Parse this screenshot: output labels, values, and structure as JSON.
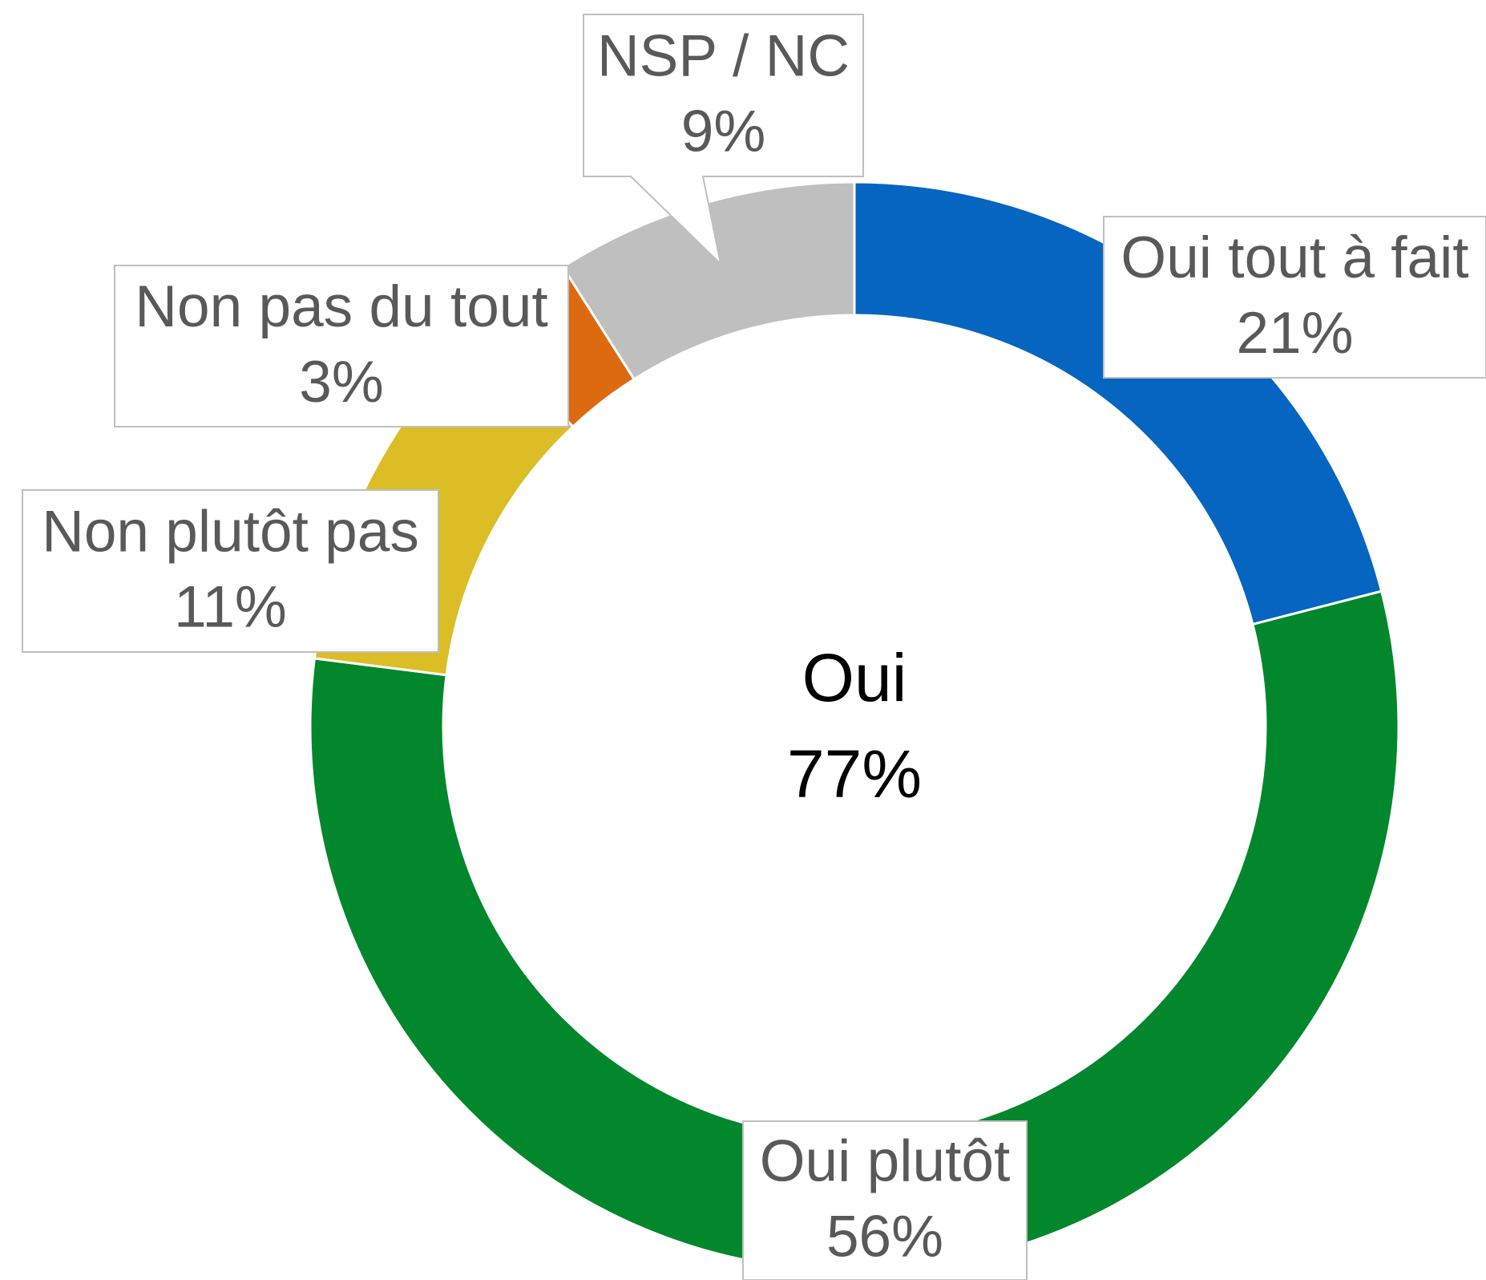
{
  "chart_data": {
    "type": "donut",
    "categories": [
      "Oui tout à fait",
      "Oui plutôt",
      "Non plutôt pas",
      "Non pas du tout",
      "NSP / NC"
    ],
    "values": [
      21,
      56,
      11,
      3,
      9
    ],
    "value_labels": [
      "21%",
      "56%",
      "11%",
      "3%",
      "9%"
    ],
    "colors": [
      "#0565c0",
      "#02872c",
      "#dbbd25",
      "#de6a10",
      "#bfbfbf"
    ],
    "center_label": {
      "title": "Oui",
      "value": 77,
      "label": "77%"
    }
  }
}
